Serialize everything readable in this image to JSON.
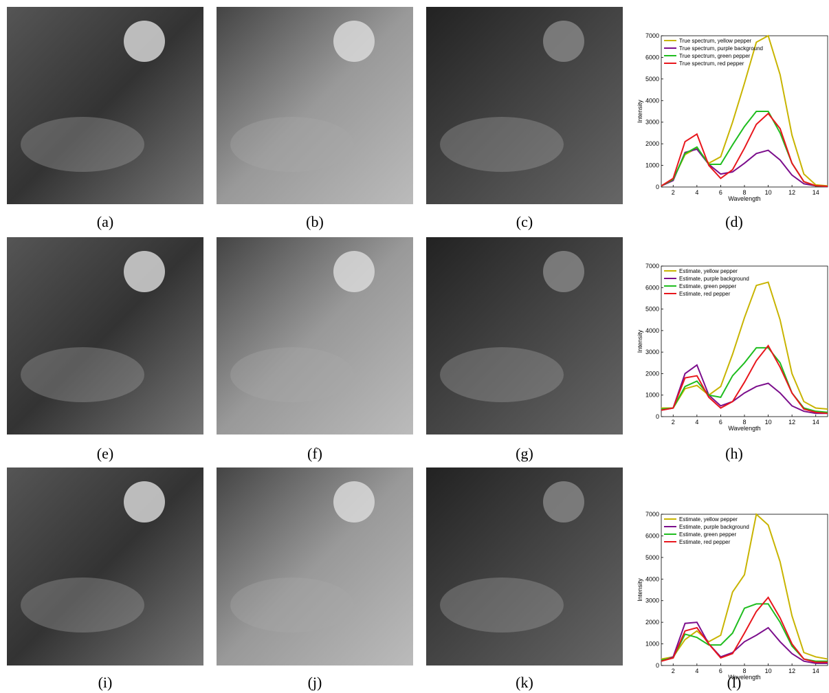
{
  "captions": [
    "(a)",
    "(b)",
    "(c)",
    "(d)",
    "(e)",
    "(f)",
    "(g)",
    "(h)",
    "(i)",
    "(j)",
    "(k)",
    "(l)"
  ],
  "chart_data": [
    {
      "type": "line",
      "x": [
        1,
        2,
        3,
        4,
        5,
        6,
        7,
        8,
        9,
        10,
        11,
        12,
        13,
        14,
        15
      ],
      "xlim": [
        1,
        15
      ],
      "ylim": [
        0,
        7000
      ],
      "xticks": [
        2,
        4,
        6,
        8,
        10,
        12,
        14
      ],
      "yticks": [
        0,
        1000,
        2000,
        3000,
        4000,
        5000,
        6000,
        7000
      ],
      "xlabel": "Wavelength",
      "ylabel": "Intensity",
      "legend": "upper left",
      "series": [
        {
          "name": "True spectrum, yellow pepper",
          "color": "#c8b400",
          "values": [
            50,
            350,
            1500,
            1800,
            1100,
            1400,
            3000,
            4800,
            6700,
            7000,
            5200,
            2400,
            600,
            100,
            50
          ]
        },
        {
          "name": "True spectrum, purple background",
          "color": "#7b0e8c",
          "values": [
            50,
            300,
            1600,
            1750,
            1050,
            600,
            700,
            1100,
            1550,
            1700,
            1250,
            550,
            150,
            50,
            20
          ]
        },
        {
          "name": "True spectrum, green pepper",
          "color": "#1fbd1f",
          "values": [
            50,
            350,
            1550,
            1850,
            1050,
            1050,
            1950,
            2800,
            3500,
            3500,
            2500,
            1100,
            250,
            50,
            30
          ]
        },
        {
          "name": "True spectrum, red pepper",
          "color": "#e8161c",
          "values": [
            50,
            400,
            2100,
            2450,
            1000,
            400,
            800,
            1800,
            2900,
            3400,
            2700,
            1100,
            250,
            60,
            30
          ]
        }
      ]
    },
    {
      "type": "line",
      "x": [
        1,
        2,
        3,
        4,
        5,
        6,
        7,
        8,
        9,
        10,
        11,
        12,
        13,
        14,
        15
      ],
      "xlim": [
        1,
        15
      ],
      "ylim": [
        0,
        7000
      ],
      "xticks": [
        2,
        4,
        6,
        8,
        10,
        12,
        14
      ],
      "yticks": [
        0,
        1000,
        2000,
        3000,
        4000,
        5000,
        6000,
        7000
      ],
      "xlabel": "Wavelength",
      "ylabel": "Intensity",
      "legend": "upper left",
      "series": [
        {
          "name": "Estimate, yellow pepper",
          "color": "#c8b400",
          "values": [
            400,
            400,
            1300,
            1450,
            1000,
            1400,
            2900,
            4600,
            6100,
            6250,
            4500,
            2000,
            700,
            400,
            350
          ]
        },
        {
          "name": "Estimate, purple background",
          "color": "#7b0e8c",
          "values": [
            300,
            400,
            2000,
            2400,
            1000,
            500,
            700,
            1100,
            1400,
            1550,
            1100,
            500,
            250,
            150,
            150
          ]
        },
        {
          "name": "Estimate, green pepper",
          "color": "#1fbd1f",
          "values": [
            350,
            400,
            1400,
            1650,
            1000,
            900,
            1900,
            2500,
            3200,
            3200,
            2500,
            1100,
            400,
            250,
            200
          ]
        },
        {
          "name": "Estimate, red pepper",
          "color": "#e8161c",
          "values": [
            300,
            400,
            1800,
            1900,
            900,
            400,
            700,
            1600,
            2600,
            3300,
            2300,
            1100,
            350,
            200,
            150
          ]
        }
      ]
    },
    {
      "type": "line",
      "x": [
        1,
        2,
        3,
        4,
        5,
        6,
        7,
        8,
        9,
        10,
        11,
        12,
        13,
        14,
        15
      ],
      "xlim": [
        1,
        15
      ],
      "ylim": [
        0,
        7000
      ],
      "xticks": [
        2,
        4,
        6,
        8,
        10,
        12,
        14
      ],
      "yticks": [
        0,
        1000,
        2000,
        3000,
        4000,
        5000,
        6000,
        7000
      ],
      "xlabel": "Wavelength",
      "ylabel": "Intensity",
      "legend": "upper left",
      "series": [
        {
          "name": "Estimate, yellow pepper",
          "color": "#c8b400",
          "values": [
            300,
            400,
            1200,
            1600,
            1100,
            1400,
            3400,
            4200,
            7000,
            6500,
            4800,
            2300,
            600,
            400,
            300
          ]
        },
        {
          "name": "Estimate, purple background",
          "color": "#7b0e8c",
          "values": [
            200,
            400,
            1950,
            2000,
            1000,
            400,
            600,
            1100,
            1400,
            1750,
            1100,
            550,
            200,
            100,
            100
          ]
        },
        {
          "name": "Estimate, green pepper",
          "color": "#1fbd1f",
          "values": [
            250,
            350,
            1450,
            1300,
            950,
            950,
            1500,
            2650,
            2850,
            2850,
            2000,
            900,
            300,
            200,
            200
          ]
        },
        {
          "name": "Estimate, red pepper",
          "color": "#e8161c",
          "values": [
            200,
            350,
            1600,
            1750,
            1000,
            350,
            550,
            1500,
            2500,
            3150,
            2200,
            1000,
            300,
            150,
            150
          ]
        }
      ]
    }
  ]
}
